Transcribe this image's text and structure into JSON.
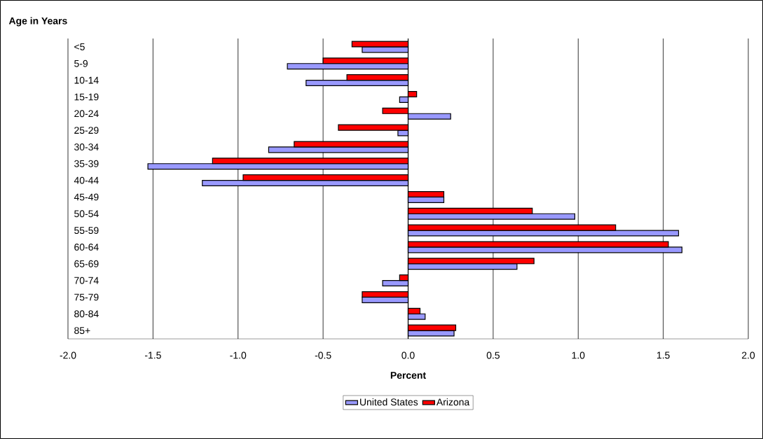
{
  "chart_data": {
    "type": "bar",
    "orientation": "horizontal",
    "title": "Age in Years",
    "xlabel": "Percent",
    "categories": [
      "<5",
      "5-9",
      "10-14",
      "15-19",
      "20-24",
      "25-29",
      "30-34",
      "35-39",
      "40-44",
      "45-49",
      "50-54",
      "55-59",
      "60-64",
      "65-69",
      "70-74",
      "75-79",
      "80-84",
      "85+"
    ],
    "series": [
      {
        "name": "United States",
        "color": "#9999ff",
        "values": [
          -0.27,
          -0.71,
          -0.6,
          -0.05,
          0.25,
          -0.06,
          -0.82,
          -1.53,
          -1.21,
          0.21,
          0.98,
          1.59,
          1.61,
          0.64,
          -0.15,
          -0.27,
          0.1,
          0.27
        ]
      },
      {
        "name": "Arizona",
        "color": "#ff0000",
        "values": [
          -0.33,
          -0.5,
          -0.36,
          0.05,
          -0.15,
          -0.41,
          -0.67,
          -1.15,
          -0.97,
          0.21,
          0.73,
          1.22,
          1.53,
          0.74,
          -0.05,
          -0.27,
          0.07,
          0.28
        ]
      }
    ],
    "xlim": [
      -2,
      2
    ],
    "xticks": [
      {
        "value": -2,
        "label": "-2.0"
      },
      {
        "value": -1.5,
        "label": "-1.5"
      },
      {
        "value": -1,
        "label": "-1.0"
      },
      {
        "value": -0.5,
        "label": "-0.5"
      },
      {
        "value": 0,
        "label": "0.0"
      },
      {
        "value": 0.5,
        "label": "0.5"
      },
      {
        "value": 1,
        "label": "1.0"
      },
      {
        "value": 1.5,
        "label": "1.5"
      },
      {
        "value": 2,
        "label": "2.0"
      }
    ],
    "grid": "x",
    "legend": "bottom"
  }
}
